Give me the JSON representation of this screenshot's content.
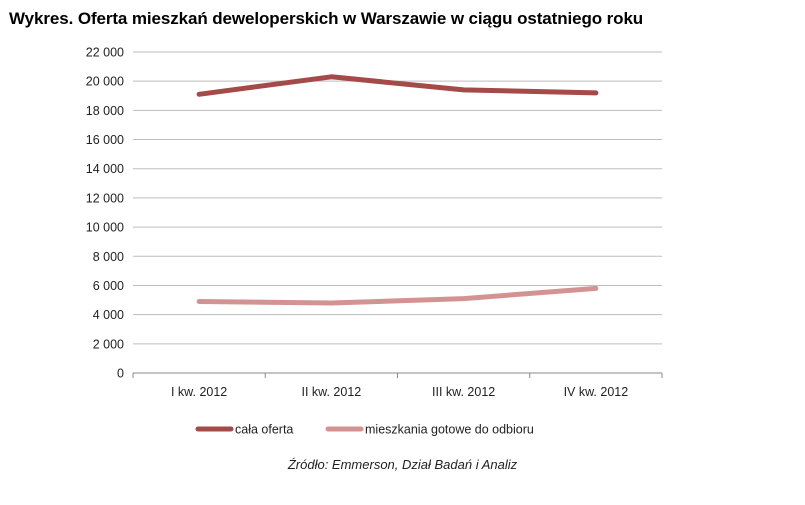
{
  "chart_data": {
    "type": "line",
    "title": "Wykres. Oferta mieszkań deweloperskich w Warszawie w ciągu ostatniego roku",
    "categories": [
      "I kw. 2012",
      "II kw. 2012",
      "III kw. 2012",
      "IV kw. 2012"
    ],
    "series": [
      {
        "name": "cała oferta",
        "values": [
          19100,
          20300,
          19400,
          19200
        ],
        "color": "#a44a48"
      },
      {
        "name": "mieszkania gotowe do odbioru",
        "values": [
          4900,
          4800,
          5100,
          5800
        ],
        "color": "#d49393"
      }
    ],
    "ylim": [
      0,
      22000
    ],
    "yticks": [
      0,
      2000,
      4000,
      6000,
      8000,
      10000,
      12000,
      14000,
      16000,
      18000,
      20000,
      22000
    ],
    "ytick_labels": [
      "0",
      "2 000",
      "4 000",
      "6 000",
      "8 000",
      "10 000",
      "12 000",
      "14 000",
      "16 000",
      "18 000",
      "20 000",
      "22 000"
    ],
    "grid": true,
    "legend_position": "bottom",
    "source": "Źródło: Emmerson, Dział Badań i Analiz"
  }
}
